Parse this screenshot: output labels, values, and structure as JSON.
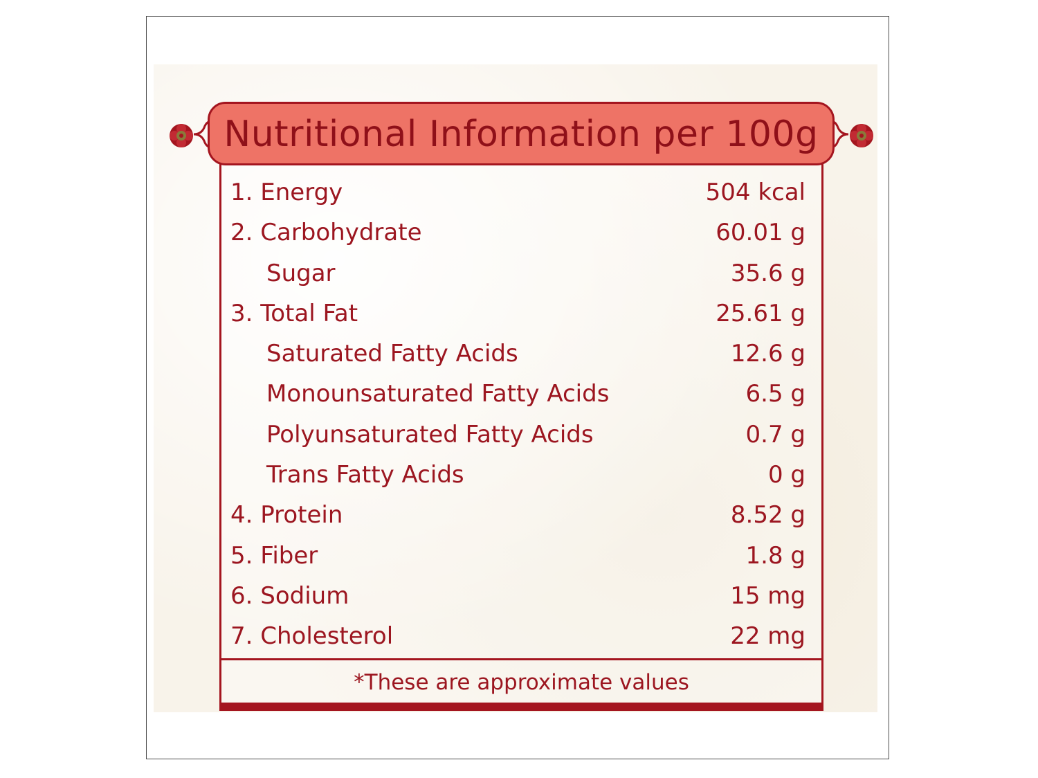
{
  "title": "Nutritional Information per 100g",
  "nutrients": [
    {
      "label": "1. Energy",
      "value": "504 kcal",
      "sub": false
    },
    {
      "label": "2. Carbohydrate",
      "value": "60.01 g",
      "sub": false
    },
    {
      "label": "Sugar",
      "value": "35.6 g",
      "sub": true
    },
    {
      "label": "3. Total Fat",
      "value": "25.61 g",
      "sub": false
    },
    {
      "label": "Saturated Fatty Acids",
      "value": "12.6 g",
      "sub": true
    },
    {
      "label": "Monounsaturated Fatty Acids",
      "value": "6.5 g",
      "sub": true
    },
    {
      "label": "Polyunsaturated Fatty Acids",
      "value": "0.7 g",
      "sub": true
    },
    {
      "label": "Trans Fatty Acids",
      "value": "0 g",
      "sub": true
    },
    {
      "label": "4. Protein",
      "value": "8.52 g",
      "sub": false
    },
    {
      "label": "5. Fiber",
      "value": "1.8 g",
      "sub": false
    },
    {
      "label": "6. Sodium",
      "value": "15 mg",
      "sub": false
    },
    {
      "label": "7. Cholesterol",
      "value": "22 mg",
      "sub": false
    }
  ],
  "footnote": "*These are approximate values",
  "colors": {
    "banner_fill": "#ee7366",
    "border": "#a4151f",
    "text": "#9c1620",
    "background": "#f8f3ea"
  },
  "icons": {
    "left_ornament": "flower-ornament-icon",
    "right_ornament": "flower-ornament-icon"
  }
}
